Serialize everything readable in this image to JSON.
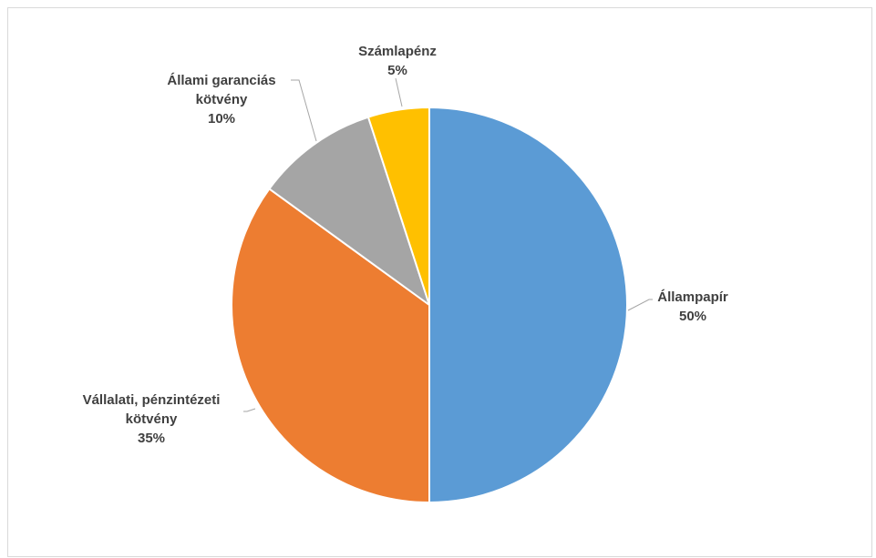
{
  "chart_data": {
    "type": "pie",
    "start_angle_deg": 0,
    "direction": "clockwise",
    "slices": [
      {
        "label_lines": [
          "Állampapír"
        ],
        "value": 50,
        "value_label": "50%",
        "color": "#5B9BD5"
      },
      {
        "label_lines": [
          "Vállalati, pénzintézeti",
          "kötvény"
        ],
        "value": 35,
        "value_label": "35%",
        "color": "#ED7D31"
      },
      {
        "label_lines": [
          "Állami garanciás",
          "kötvény"
        ],
        "value": 10,
        "value_label": "10%",
        "color": "#A5A5A5"
      },
      {
        "label_lines": [
          "Számlapénz"
        ],
        "value": 5,
        "value_label": "5%",
        "color": "#FFC000"
      }
    ]
  }
}
